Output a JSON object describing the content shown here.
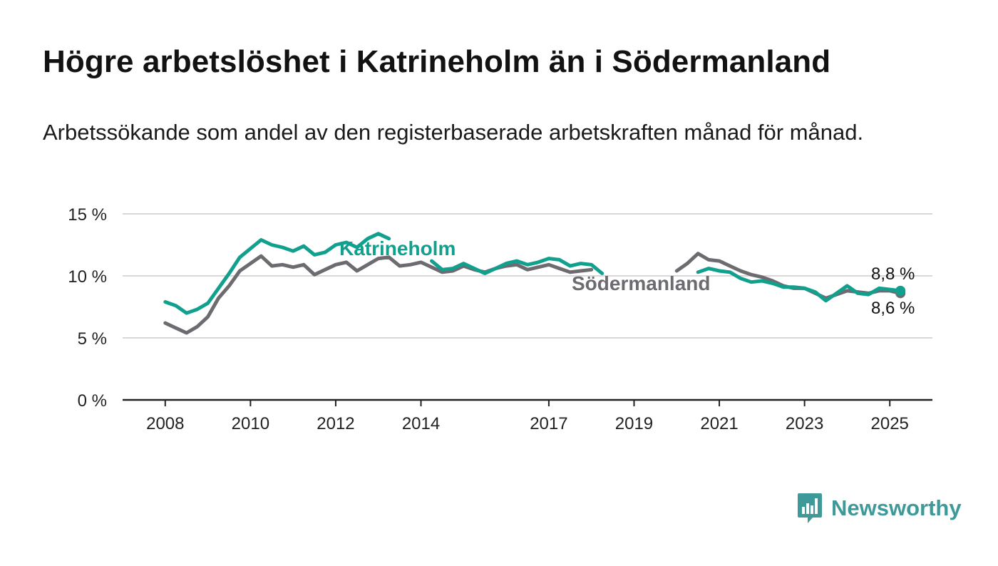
{
  "title": "Högre arbetslöshet i Katrineholm än i Södermanland",
  "subtitle": "Arbetssökande som andel av den registerbaserade arbetskraften månad för månad.",
  "brand": {
    "name": "Newsworthy",
    "icon": "bar-chart-speech-bubble-icon",
    "color": "#3e9a98"
  },
  "chart_data": {
    "type": "line",
    "y_ticks": [
      "0 %",
      "5 %",
      "10 %",
      "15 %"
    ],
    "x_ticks": [
      "2008",
      "2010",
      "2012",
      "2014",
      "2017",
      "2019",
      "2021",
      "2023",
      "2025"
    ],
    "ylim": [
      0,
      15
    ],
    "xlim": [
      "2007-01",
      "2026-01"
    ],
    "grid": true,
    "x": [
      "2008-01",
      "2008-04",
      "2008-07",
      "2008-10",
      "2009-01",
      "2009-04",
      "2009-07",
      "2009-10",
      "2010-01",
      "2010-04",
      "2010-07",
      "2010-10",
      "2011-01",
      "2011-04",
      "2011-07",
      "2011-10",
      "2012-01",
      "2012-04",
      "2012-07",
      "2012-10",
      "2013-01",
      "2013-04",
      "2013-07",
      "2013-10",
      "2014-01",
      "2014-04",
      "2014-07",
      "2014-10",
      "2015-01",
      "2015-04",
      "2015-07",
      "2015-10",
      "2016-01",
      "2016-04",
      "2016-07",
      "2016-10",
      "2017-01",
      "2017-04",
      "2017-07",
      "2017-10",
      "2018-01",
      "2018-04",
      "2018-07",
      "2018-10",
      "2019-01",
      "2019-04",
      "2019-07",
      "2019-10",
      "2020-01",
      "2020-04",
      "2020-07",
      "2020-10",
      "2021-01",
      "2021-04",
      "2021-07",
      "2021-10",
      "2022-01",
      "2022-04",
      "2022-07",
      "2022-10",
      "2023-01",
      "2023-04",
      "2023-07",
      "2023-10",
      "2024-01",
      "2024-04",
      "2024-07",
      "2024-10",
      "2025-01",
      "2025-04"
    ],
    "series": [
      {
        "name": "Katrineholm",
        "color": "#12a08e",
        "values": [
          7.9,
          7.6,
          7.0,
          7.3,
          7.8,
          9.0,
          10.2,
          11.5,
          12.2,
          12.9,
          12.5,
          12.3,
          12.0,
          12.4,
          11.7,
          11.9,
          12.5,
          12.7,
          12.3,
          13.0,
          13.4,
          13.0,
          null,
          null,
          null,
          11.2,
          10.5,
          10.6,
          11.0,
          10.6,
          10.2,
          10.6,
          11.0,
          11.2,
          10.9,
          11.1,
          11.4,
          11.3,
          10.8,
          11.0,
          10.9,
          10.2,
          null,
          null,
          null,
          null,
          null,
          null,
          null,
          null,
          10.3,
          10.6,
          10.4,
          10.3,
          9.8,
          9.5,
          9.6,
          9.4,
          9.1,
          9.1,
          9.0,
          8.7,
          8.0,
          8.6,
          9.2,
          8.6,
          8.5,
          9.0,
          8.9,
          8.8
        ]
      },
      {
        "name": "Södermanland",
        "color": "#6e6b70",
        "values": [
          6.2,
          5.8,
          5.4,
          5.9,
          6.7,
          8.2,
          9.2,
          10.4,
          11.0,
          11.6,
          10.8,
          10.9,
          10.7,
          10.9,
          10.1,
          10.5,
          10.9,
          11.1,
          10.4,
          10.9,
          11.4,
          11.5,
          10.8,
          10.9,
          11.1,
          10.7,
          10.3,
          10.4,
          10.8,
          10.5,
          10.3,
          10.6,
          10.8,
          10.9,
          10.5,
          10.7,
          10.9,
          10.6,
          10.3,
          10.4,
          10.5,
          null,
          null,
          null,
          null,
          null,
          null,
          null,
          10.4,
          11.0,
          11.8,
          11.3,
          11.2,
          10.8,
          10.4,
          10.1,
          9.9,
          9.6,
          9.2,
          9.0,
          9.0,
          8.6,
          8.2,
          8.5,
          8.8,
          8.7,
          8.6,
          8.8,
          8.8,
          8.6
        ]
      }
    ],
    "series_labels": [
      "Katrineholm",
      "Södermanland"
    ],
    "end_labels": [
      "8,8 %",
      "8,6 %"
    ]
  }
}
